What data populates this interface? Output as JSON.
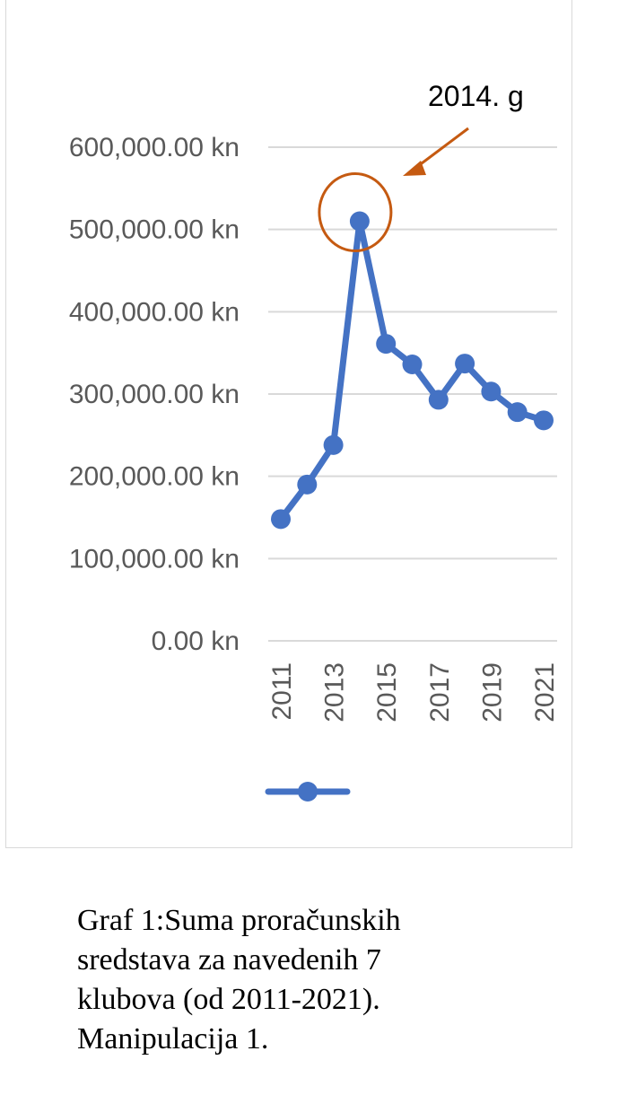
{
  "chart_data": {
    "type": "line",
    "x": [
      2011,
      2012,
      2013,
      2014,
      2015,
      2016,
      2017,
      2018,
      2019,
      2020,
      2021
    ],
    "x_tick_labels": [
      "2011",
      "2013",
      "2015",
      "2017",
      "2019",
      "2021"
    ],
    "series": [
      {
        "values": [
          148000,
          190000,
          238000,
          510000,
          361000,
          336000,
          293000,
          337000,
          303000,
          278000,
          268000
        ]
      }
    ],
    "ylim": [
      0,
      600000
    ],
    "y_tick_labels": [
      "0.00 kn",
      "100,000.00 kn",
      "200,000.00 kn",
      "300,000.00 kn",
      "400,000.00 kn",
      "500,000.00 kn",
      "600,000.00 kn"
    ],
    "y_ticks": [
      0,
      100000,
      200000,
      300000,
      400000,
      500000,
      600000
    ],
    "grid": true,
    "legend": "bottom",
    "annotation": {
      "text": "2014. g",
      "x": 2014,
      "y": 510000
    },
    "colors": {
      "series": "#4472c4",
      "annotation": "#c55a11",
      "grid": "#d9d9d9",
      "axis_text": "#595959"
    }
  },
  "caption": {
    "lines": [
      "Graf 1:Suma proračunskih",
      "sredstava za navedenih 7",
      "klubova (od 2011-2021).",
      "Manipulacija 1."
    ]
  }
}
